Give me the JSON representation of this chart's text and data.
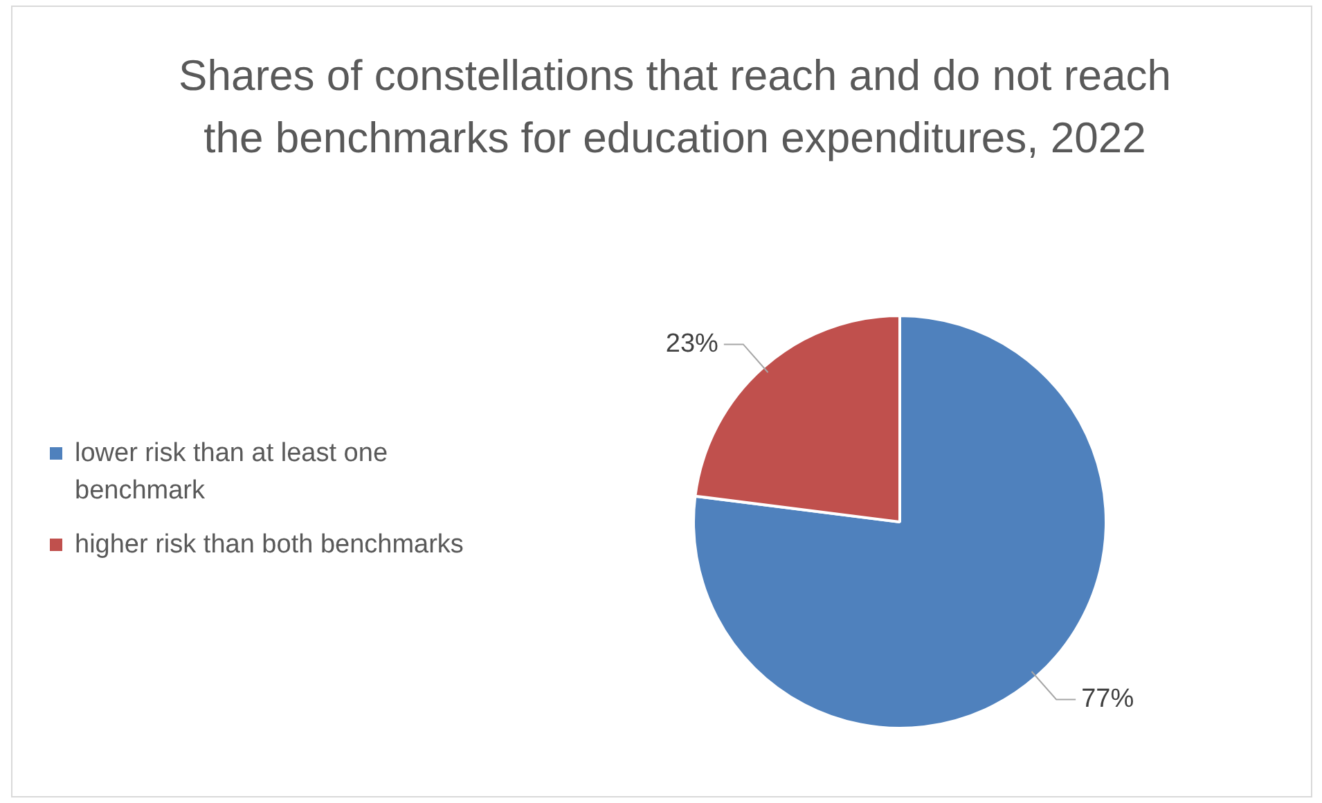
{
  "chart_data": {
    "type": "pie",
    "title": "Shares of constellations that reach and do not reach the benchmarks for education expenditures, 2022",
    "categories": [
      "lower risk than at least one benchmark",
      "higher risk than both benchmarks"
    ],
    "values": [
      77,
      23
    ],
    "colors": [
      "#4f81bd",
      "#c0504d"
    ],
    "value_labels": [
      "77%",
      "23%"
    ],
    "legend": "left"
  }
}
